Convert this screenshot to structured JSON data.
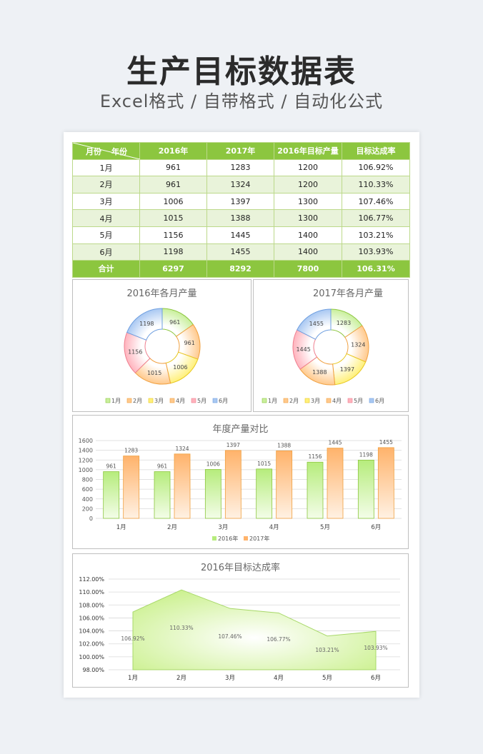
{
  "header": {
    "title": "生产目标数据表",
    "subtitle": "Excel格式 / 自带格式 / 自动化公式"
  },
  "table": {
    "corner_month": "月份",
    "corner_year": "年份",
    "columns": [
      "2016年",
      "2017年",
      "2016年目标产量",
      "目标达成率"
    ],
    "rows": [
      {
        "month": "1月",
        "y2016": "961",
        "y2017": "1283",
        "target": "1200",
        "rate": "106.92%"
      },
      {
        "month": "2月",
        "y2016": "961",
        "y2017": "1324",
        "target": "1200",
        "rate": "110.33%"
      },
      {
        "month": "3月",
        "y2016": "1006",
        "y2017": "1397",
        "target": "1300",
        "rate": "107.46%"
      },
      {
        "month": "4月",
        "y2016": "1015",
        "y2017": "1388",
        "target": "1300",
        "rate": "106.77%"
      },
      {
        "month": "5月",
        "y2016": "1156",
        "y2017": "1445",
        "target": "1400",
        "rate": "103.21%"
      },
      {
        "month": "6月",
        "y2016": "1198",
        "y2017": "1455",
        "target": "1400",
        "rate": "103.93%"
      }
    ],
    "total": {
      "label": "合计",
      "y2016": "6297",
      "y2017": "8292",
      "target": "7800",
      "rate": "106.31%"
    }
  },
  "colors": {
    "accent": "#8cc63f",
    "slices": [
      "#c9ef9c",
      "#ffc98c",
      "#fff07a",
      "#ffc98c",
      "#ffb3bd",
      "#a9c8f2"
    ],
    "slice_strokes": [
      "#8cc63f",
      "#f0a040",
      "#e8c820",
      "#f0a040",
      "#ef7f8f",
      "#6f9fe0"
    ],
    "bar_2016": "#b6ec7c",
    "bar_2017": "#ffb36b"
  },
  "chart_data": [
    {
      "type": "pie",
      "title": "2016年各月产量",
      "categories": [
        "1月",
        "2月",
        "3月",
        "4月",
        "5月",
        "6月"
      ],
      "values": [
        961,
        961,
        1006,
        1015,
        1156,
        1198
      ],
      "legend": "bottom"
    },
    {
      "type": "pie",
      "title": "2017年各月产量",
      "categories": [
        "1月",
        "2月",
        "3月",
        "4月",
        "5月",
        "6月"
      ],
      "values": [
        1283,
        1324,
        1397,
        1388,
        1445,
        1455
      ],
      "legend": "bottom"
    },
    {
      "type": "bar",
      "title": "年度产量对比",
      "categories": [
        "1月",
        "2月",
        "3月",
        "4月",
        "5月",
        "6月"
      ],
      "series": [
        {
          "name": "2016年",
          "values": [
            961,
            961,
            1006,
            1015,
            1156,
            1198
          ]
        },
        {
          "name": "2017年",
          "values": [
            1283,
            1324,
            1397,
            1388,
            1445,
            1455
          ]
        }
      ],
      "ylim": [
        0,
        1600
      ],
      "yticks": [
        0,
        200,
        400,
        600,
        800,
        1000,
        1200,
        1400,
        1600
      ],
      "grid": true,
      "legend": "bottom"
    },
    {
      "type": "area",
      "title": "2016年目标达成率",
      "categories": [
        "1月",
        "2月",
        "3月",
        "4月",
        "5月",
        "6月"
      ],
      "values": [
        106.92,
        110.33,
        107.46,
        106.77,
        103.21,
        103.93
      ],
      "labels": [
        "106.92%",
        "110.33%",
        "107.46%",
        "106.77%",
        "103.21%",
        "103.93%"
      ],
      "ylim": [
        98,
        112
      ],
      "yticks": [
        "98.00%",
        "100.00%",
        "102.00%",
        "104.00%",
        "106.00%",
        "108.00%",
        "110.00%",
        "112.00%"
      ],
      "grid": true
    }
  ]
}
